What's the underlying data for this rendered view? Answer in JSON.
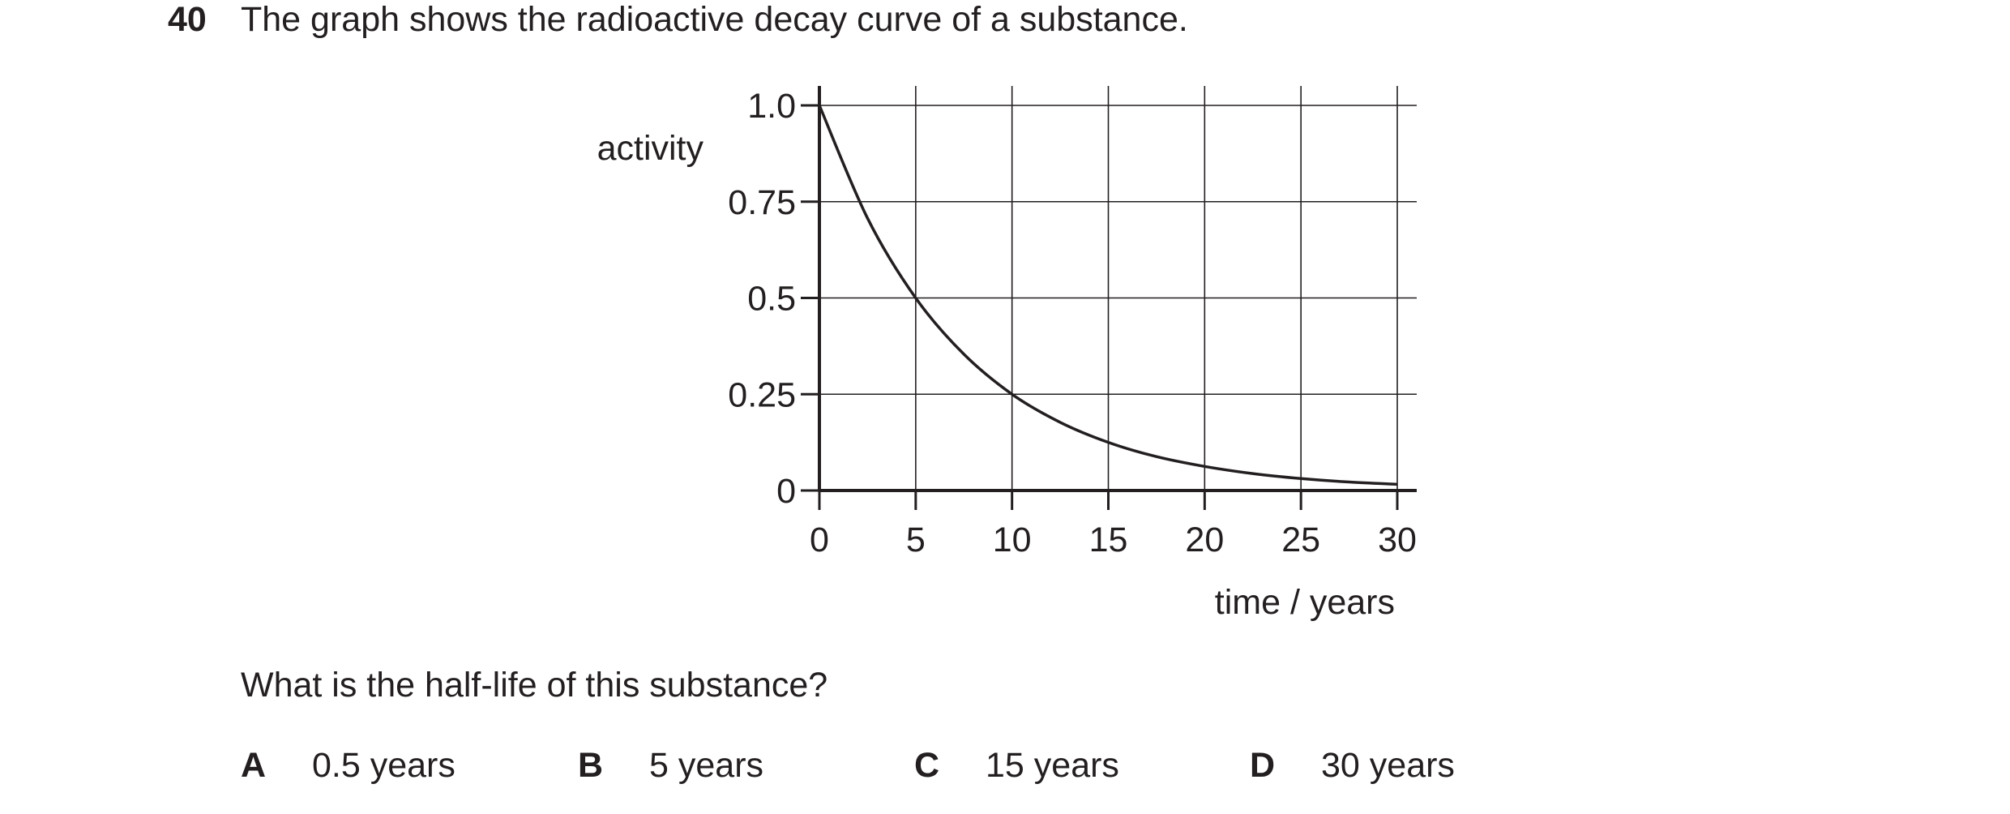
{
  "question": {
    "number": "40",
    "stem": "The graph shows the radioactive decay curve of a substance.",
    "prompt": "What is the half-life of this substance?",
    "options": [
      {
        "letter": "A",
        "text": "0.5 years"
      },
      {
        "letter": "B",
        "text": "5 years"
      },
      {
        "letter": "C",
        "text": "15 years"
      },
      {
        "letter": "D",
        "text": "30 years"
      }
    ]
  },
  "chart_data": {
    "type": "line",
    "title": "",
    "xlabel": "time / years",
    "ylabel": "activity",
    "xlim": [
      0,
      30
    ],
    "ylim": [
      0,
      1.0
    ],
    "xticks": [
      0,
      5,
      10,
      15,
      20,
      25,
      30
    ],
    "xtick_labels": [
      "0",
      "5",
      "10",
      "15",
      "20",
      "25",
      "30"
    ],
    "yticks": [
      0,
      0.25,
      0.5,
      0.75,
      1.0
    ],
    "ytick_labels": [
      "0",
      "0.25",
      "0.5",
      "0.75",
      "1.0"
    ],
    "grid": true,
    "series": [
      {
        "x": [
          0,
          2.5,
          5,
          7.5,
          10,
          12.5,
          15,
          17.5,
          20,
          22.5,
          25,
          27.5,
          30
        ],
        "values": [
          1.0,
          0.707,
          0.5,
          0.354,
          0.25,
          0.177,
          0.125,
          0.088,
          0.0625,
          0.044,
          0.031,
          0.022,
          0.016
        ]
      }
    ]
  }
}
